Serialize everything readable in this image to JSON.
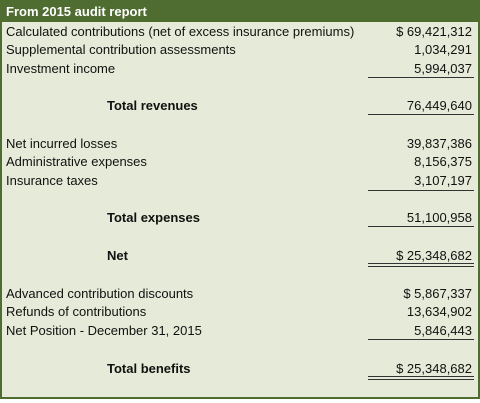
{
  "header": {
    "title": "From 2015 audit report"
  },
  "table": {
    "rows": [
      [
        "Calculated contributions (net of excess insurance premiums)",
        "$ 69,421,312"
      ],
      [
        "Supplemental contribution assessments",
        "1,034,291"
      ],
      [
        "Investment income",
        "5,994,037"
      ],
      [
        "Total revenues",
        "76,449,640"
      ],
      [
        "Net incurred losses",
        "39,837,386"
      ],
      [
        "Administrative expenses",
        "8,156,375"
      ],
      [
        "Insurance taxes",
        "3,107,197"
      ],
      [
        "Total expenses",
        "51,100,958"
      ],
      [
        "Net",
        "$ 25,348,682"
      ],
      [
        "Advanced contribution discounts",
        "$ 5,867,337"
      ],
      [
        "Refunds of contributions",
        "13,634,902"
      ],
      [
        "Net Position - December 31, 2015",
        "5,846,443"
      ],
      [
        "Total benefits",
        "$ 25,348,682"
      ]
    ]
  }
}
